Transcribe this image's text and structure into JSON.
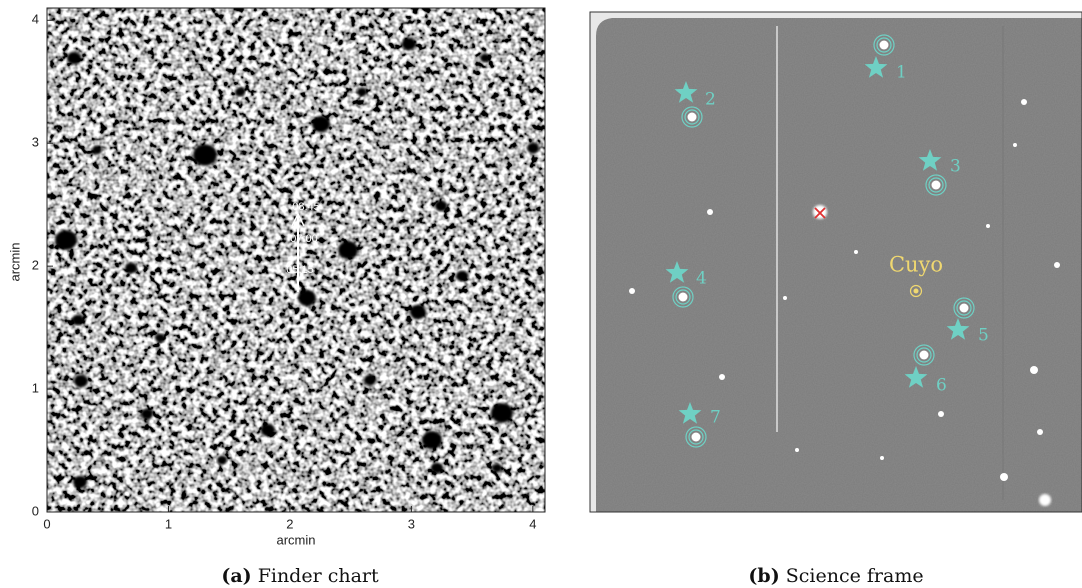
{
  "panels": [
    {
      "caption_label": "(a)",
      "caption": "Finder chart",
      "xlabel": "arcmin",
      "ylabel": "arcmin",
      "xlim": [
        0,
        4.1
      ],
      "ylim": [
        0,
        4.1
      ],
      "xticks": [
        0,
        1,
        2,
        3,
        4
      ],
      "yticks": [
        0,
        1,
        2,
        3,
        4
      ],
      "annotations": [
        "08:45",
        "07:00",
        "05:15"
      ]
    },
    {
      "caption_label": "(b)",
      "caption": "Science frame",
      "star_labels": [
        "1",
        "2",
        "3",
        "4",
        "5",
        "6",
        "7"
      ],
      "target_label": "Cuyo"
    }
  ]
}
